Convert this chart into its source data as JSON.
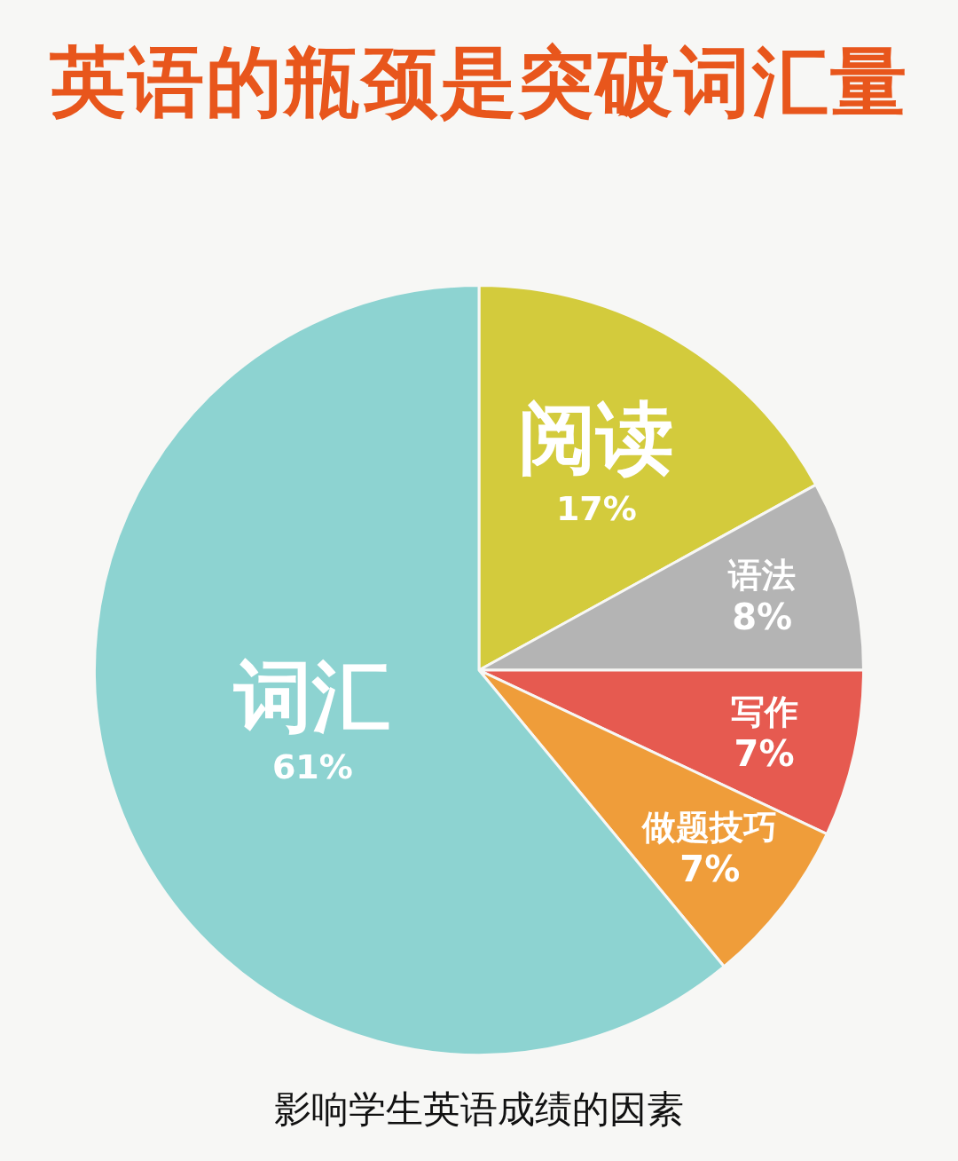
{
  "chart_data": {
    "type": "pie",
    "title": "英语的瓶颈是突破词汇量",
    "categories": [
      "阅读",
      "语法",
      "写作",
      "做题技巧",
      "词汇"
    ],
    "values": [
      17,
      8,
      7,
      7,
      61
    ],
    "value_labels": [
      "17%",
      "8%",
      "7%",
      "7%",
      "61%"
    ],
    "colors": [
      "#d3cb3c",
      "#b4b4b4",
      "#e65a50",
      "#ef9d3a",
      "#8dd3d1"
    ],
    "annotations": [
      "影响学生英语成绩的因素"
    ]
  }
}
